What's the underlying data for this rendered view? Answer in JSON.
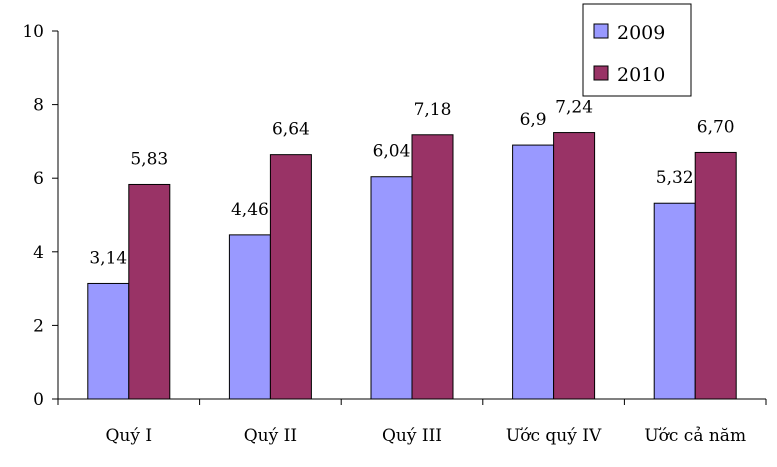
{
  "chart_data": {
    "type": "bar",
    "categories": [
      "Quý I",
      "Quý II",
      "Quý III",
      "Ước quý IV",
      "Ước cả năm"
    ],
    "series": [
      {
        "name": "2009",
        "values": [
          3.14,
          4.46,
          6.04,
          6.9,
          5.32
        ],
        "labels": [
          "3,14",
          "4,46",
          "6,04",
          "6,9",
          "5,32"
        ],
        "color": "#9999ff"
      },
      {
        "name": "2010",
        "values": [
          5.83,
          6.64,
          7.18,
          7.24,
          6.7
        ],
        "labels": [
          "5,83",
          "6,64",
          "7,18",
          "7,24",
          "6,70"
        ],
        "color": "#993366"
      }
    ],
    "ylim": [
      0,
      10
    ],
    "yticks": [
      "0",
      "2",
      "4",
      "6",
      "8",
      "10"
    ],
    "grid": false,
    "legend_position": "top-right"
  }
}
